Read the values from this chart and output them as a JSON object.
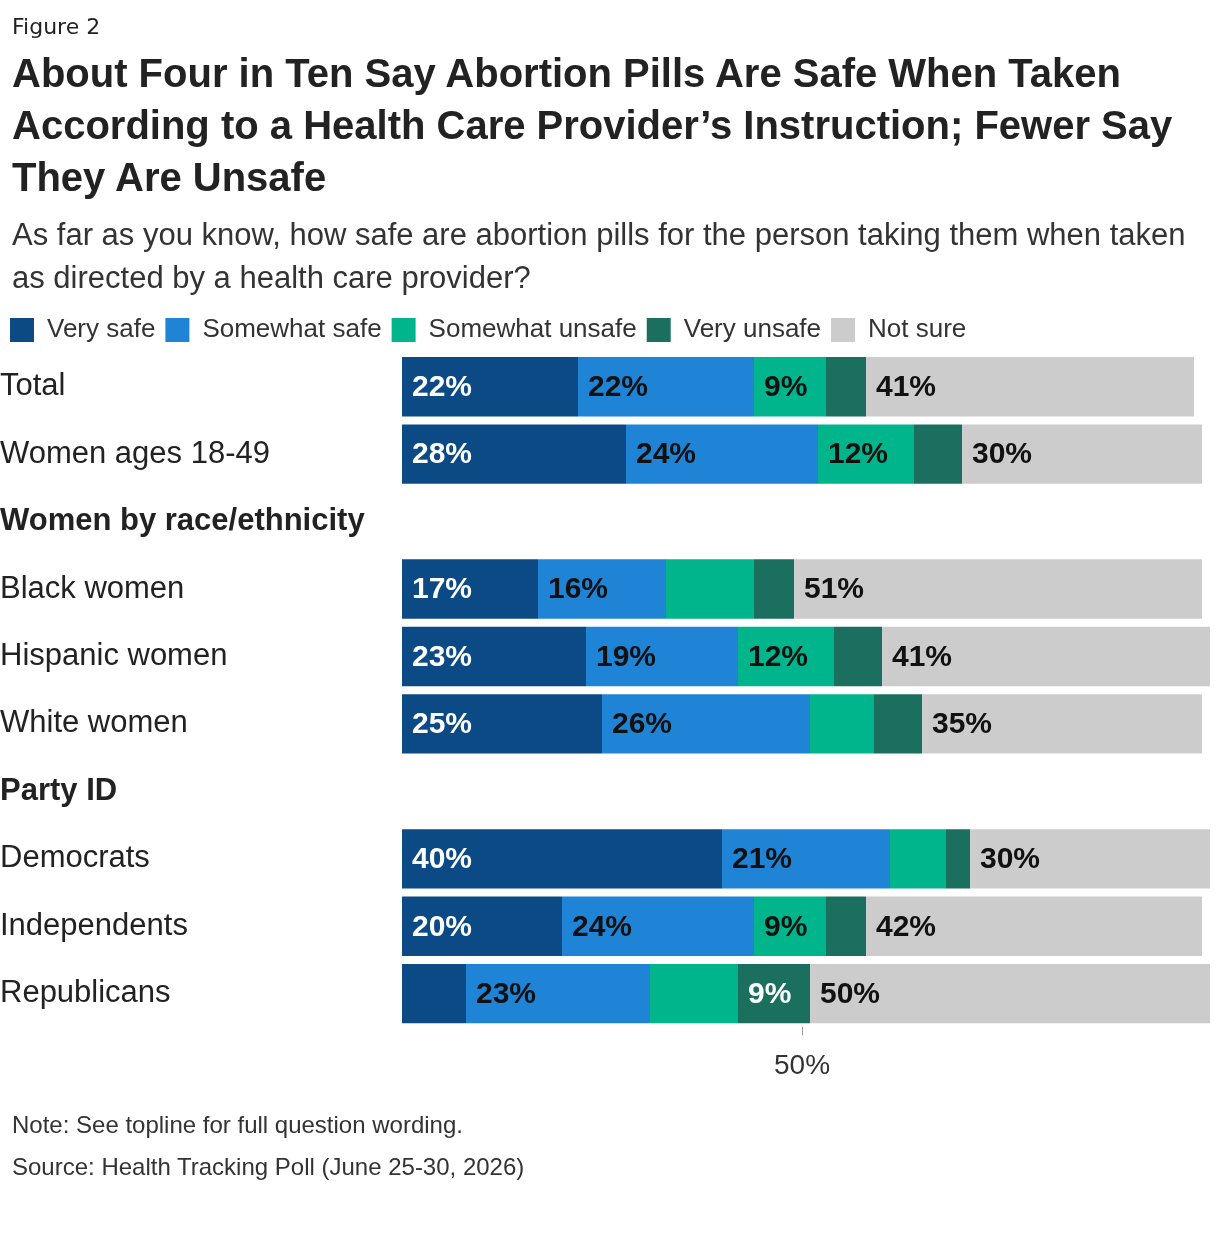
{
  "chart_data": {
    "type": "bar",
    "orientation": "horizontal",
    "stacked": true,
    "title": "About Four in Ten Say Abortion Pills Are Safe When Taken According to a Health Care Provider’s Instruction; Fewer Say They Are Unsafe",
    "subtitle": "As far as you know, how safe are abortion pills for the person taking them when taken as directed by a health care provider?",
    "categories": [
      "Total",
      "Women ages 18-49",
      "Women by race/ethnicity",
      "Black women",
      "Hispanic women",
      "White women",
      "Party ID",
      "Democrats",
      "Independents",
      "Republicans"
    ],
    "series": [
      {
        "name": "Very safe",
        "color": "#0b4a85",
        "values": [
          22,
          28,
          null,
          17,
          23,
          25,
          null,
          40,
          20,
          8
        ],
        "value_labels": [
          "22%",
          "28%",
          null,
          "17%",
          "23%",
          "25%",
          null,
          "40%",
          "20%",
          null
        ]
      },
      {
        "name": "Somewhat safe",
        "color": "#1f84d6",
        "values": [
          22,
          24,
          null,
          16,
          19,
          26,
          null,
          21,
          24,
          23
        ],
        "value_labels": [
          "22%",
          "24%",
          null,
          "16%",
          "19%",
          "26%",
          null,
          "21%",
          "24%",
          "23%"
        ]
      },
      {
        "name": "Somewhat unsafe",
        "color": "#00b58b",
        "values": [
          9,
          12,
          null,
          11,
          12,
          8,
          null,
          7,
          9,
          11
        ],
        "value_labels": [
          "9%",
          "12%",
          null,
          null,
          "12%",
          null,
          null,
          null,
          "9%",
          null
        ]
      },
      {
        "name": "Very unsafe",
        "color": "#1b6f5f",
        "values": [
          5,
          6,
          null,
          5,
          6,
          6,
          null,
          3,
          5,
          9
        ],
        "value_labels": [
          null,
          null,
          null,
          null,
          null,
          null,
          null,
          null,
          null,
          "9%"
        ]
      },
      {
        "name": "Not sure",
        "color": "#cccccc",
        "values": [
          41,
          30,
          null,
          51,
          41,
          35,
          null,
          30,
          42,
          50
        ],
        "value_labels": [
          "41%",
          "30%",
          null,
          "51%",
          "41%",
          "35%",
          null,
          "30%",
          "42%",
          "50%"
        ]
      }
    ],
    "xlim": [
      0,
      101
    ],
    "xticks": [
      {
        "value": 50,
        "label": "50%"
      }
    ],
    "grid": false,
    "legend": "top left",
    "annotations": [
      "Figure 2",
      "Note: See topline for full question wording.",
      "Source: Health Tracking Poll (June 25-30, 2026)"
    ]
  }
}
